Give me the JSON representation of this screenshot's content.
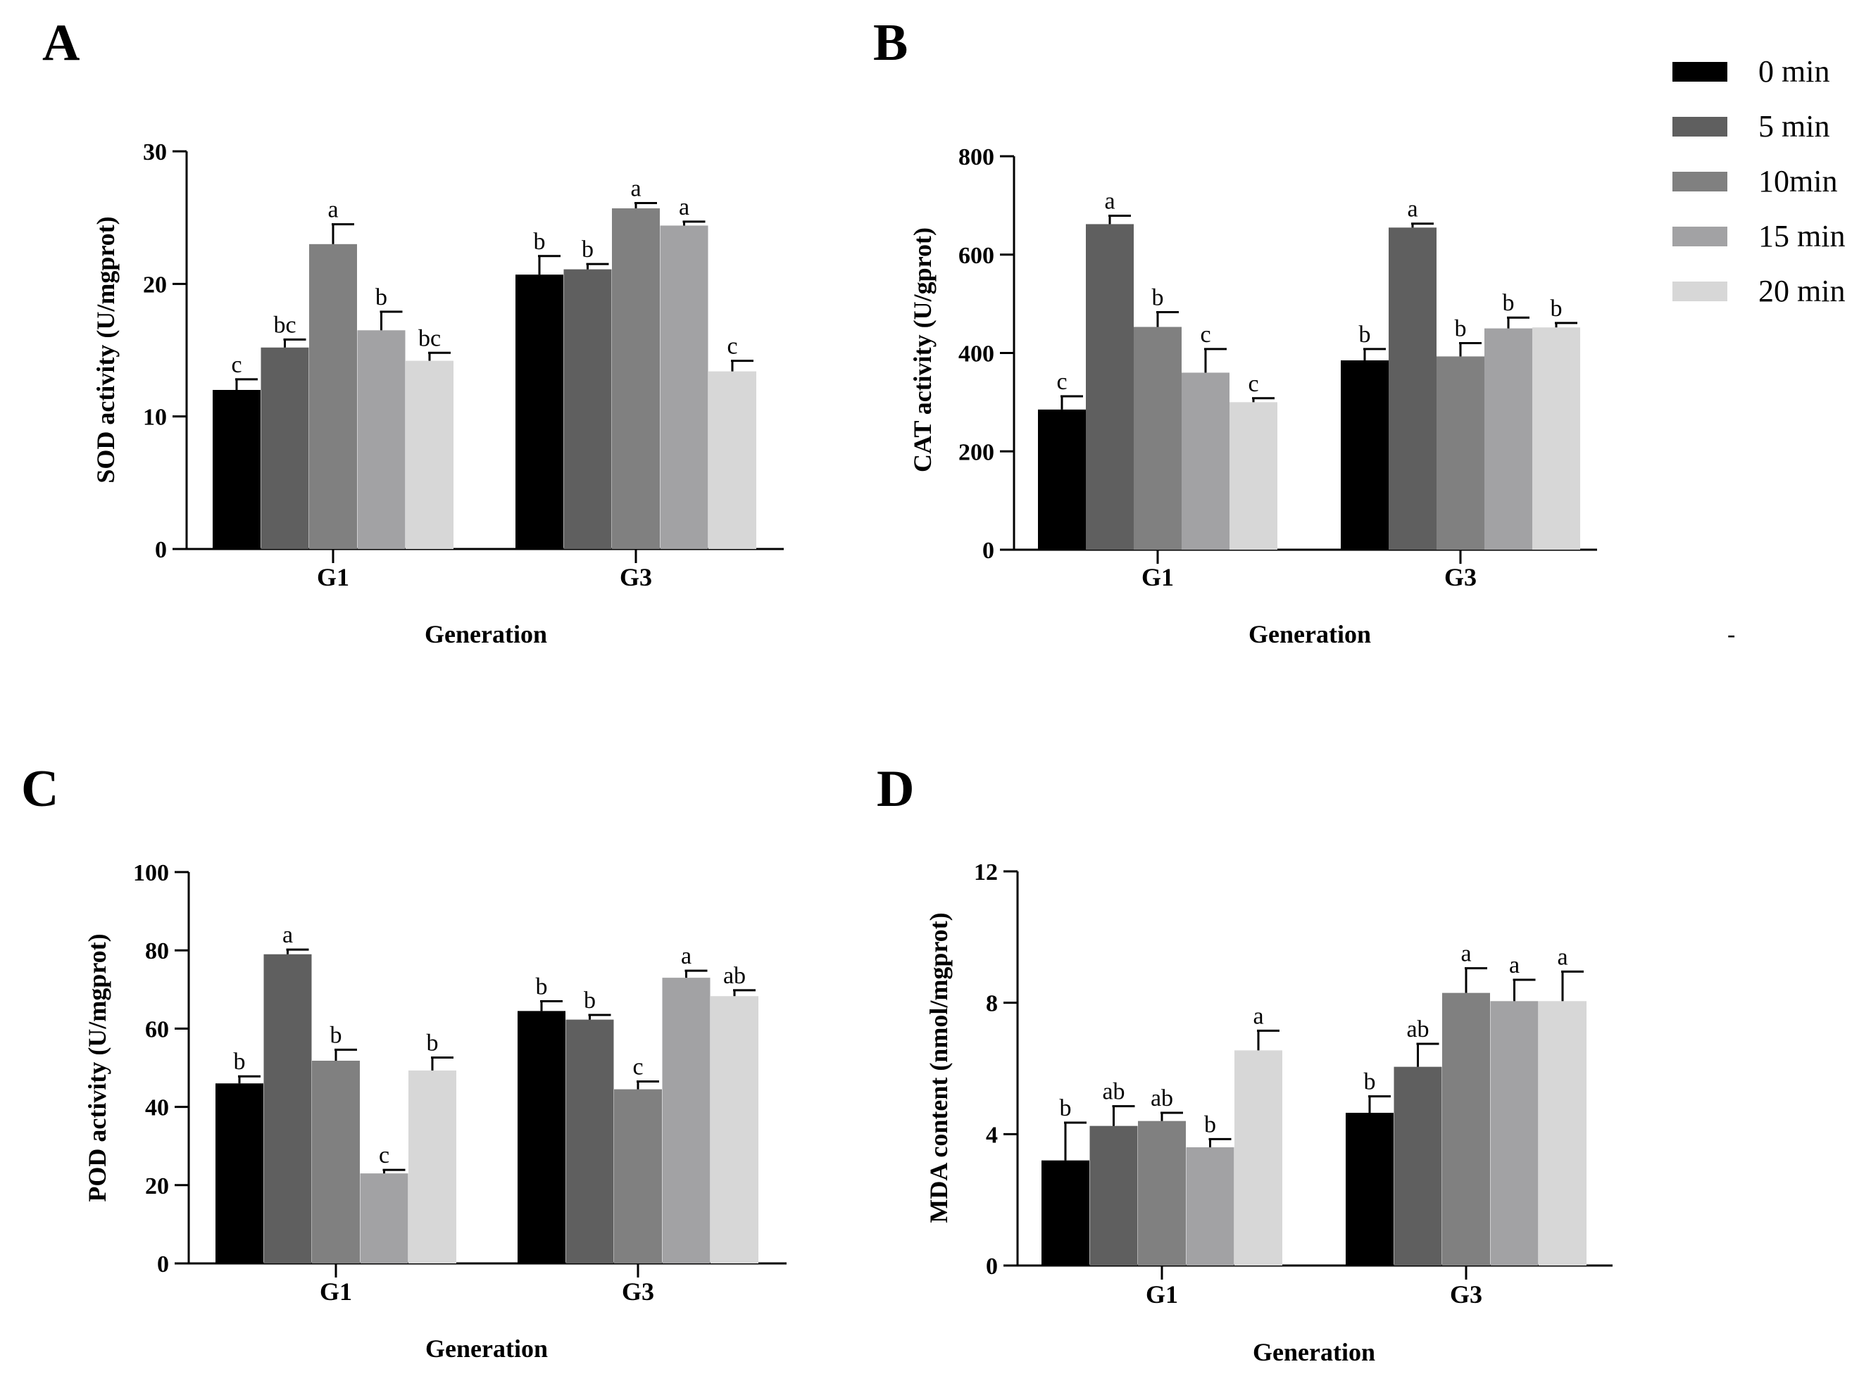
{
  "legend": [
    {
      "label": "0 min",
      "color": "#000000"
    },
    {
      "label": "5 min",
      "color": "#5f5f5f"
    },
    {
      "label": "10min",
      "color": "#808080"
    },
    {
      "label": "15 min",
      "color": "#a2a2a4"
    },
    {
      "label": "20 min",
      "color": "#d7d7d7"
    }
  ],
  "stray_mark": "-",
  "chart_data": [
    {
      "panel": "A",
      "type": "bar",
      "ylabel": "SOD activity  (U/mgprot)",
      "xlabel": "Generation",
      "categories": [
        "G1",
        "G3"
      ],
      "ylim": [
        0,
        30
      ],
      "yticks": [
        0,
        10,
        20,
        30
      ],
      "series": [
        {
          "name": "0 min",
          "values": [
            12.0,
            20.7
          ],
          "errors": [
            0.8,
            1.4
          ],
          "letters": [
            "c",
            "b"
          ]
        },
        {
          "name": "5 min",
          "values": [
            15.2,
            21.1
          ],
          "errors": [
            0.6,
            0.4
          ],
          "letters": [
            "bc",
            "b"
          ]
        },
        {
          "name": "10min",
          "values": [
            23.0,
            25.7
          ],
          "errors": [
            1.5,
            0.4
          ],
          "letters": [
            "a",
            "a"
          ]
        },
        {
          "name": "15 min",
          "values": [
            16.5,
            24.4
          ],
          "errors": [
            1.4,
            0.3
          ],
          "letters": [
            "b",
            "a"
          ]
        },
        {
          "name": "20 min",
          "values": [
            14.2,
            13.4
          ],
          "errors": [
            0.6,
            0.8
          ],
          "letters": [
            "bc",
            "c"
          ]
        }
      ]
    },
    {
      "panel": "B",
      "type": "bar",
      "ylabel": "CAT activity  (U/gprot)",
      "xlabel": "Generation",
      "categories": [
        "G1",
        "G3"
      ],
      "ylim": [
        0,
        800
      ],
      "yticks": [
        0,
        200,
        400,
        600,
        800
      ],
      "series": [
        {
          "name": "0 min",
          "values": [
            285,
            385
          ],
          "errors": [
            27,
            23
          ],
          "letters": [
            "c",
            "b"
          ]
        },
        {
          "name": "5 min",
          "values": [
            662,
            655
          ],
          "errors": [
            17,
            8
          ],
          "letters": [
            "a",
            "a"
          ]
        },
        {
          "name": "10min",
          "values": [
            453,
            393
          ],
          "errors": [
            30,
            27
          ],
          "letters": [
            "b",
            "b"
          ]
        },
        {
          "name": "15 min",
          "values": [
            360,
            450
          ],
          "errors": [
            48,
            22
          ],
          "letters": [
            "c",
            "b"
          ]
        },
        {
          "name": "20 min",
          "values": [
            300,
            452
          ],
          "errors": [
            8,
            9
          ],
          "letters": [
            "c",
            "b"
          ]
        }
      ]
    },
    {
      "panel": "C",
      "type": "bar",
      "ylabel": "POD activity (U/mgprot)",
      "xlabel": "Generation",
      "categories": [
        "G1",
        "G3"
      ],
      "ylim": [
        0,
        100
      ],
      "yticks": [
        0,
        20,
        40,
        60,
        80,
        100
      ],
      "series": [
        {
          "name": "0 min",
          "values": [
            46,
            64.5
          ],
          "errors": [
            1.8,
            2.5
          ],
          "letters": [
            "b",
            "b"
          ]
        },
        {
          "name": "5 min",
          "values": [
            79,
            62.3
          ],
          "errors": [
            1.2,
            1.2
          ],
          "letters": [
            "a",
            "b"
          ]
        },
        {
          "name": "10min",
          "values": [
            51.8,
            44.5
          ],
          "errors": [
            2.8,
            2.0
          ],
          "letters": [
            "b",
            "c"
          ]
        },
        {
          "name": "15 min",
          "values": [
            23,
            73
          ],
          "errors": [
            0.9,
            1.8
          ],
          "letters": [
            "c",
            "a"
          ]
        },
        {
          "name": "20 min",
          "values": [
            49.3,
            68.3
          ],
          "errors": [
            3.3,
            1.5
          ],
          "letters": [
            "b",
            "ab"
          ]
        }
      ]
    },
    {
      "panel": "D",
      "type": "bar",
      "ylabel": "MDA content (nmol/mgprot)",
      "xlabel": "Generation",
      "categories": [
        "G1",
        "G3"
      ],
      "ylim": [
        0,
        12
      ],
      "yticks": [
        0,
        4,
        8,
        12
      ],
      "series": [
        {
          "name": "0 min",
          "values": [
            3.2,
            4.65
          ],
          "errors": [
            1.15,
            0.5
          ],
          "letters": [
            "b",
            "b"
          ]
        },
        {
          "name": "5 min",
          "values": [
            4.25,
            6.05
          ],
          "errors": [
            0.6,
            0.7
          ],
          "letters": [
            "ab",
            "ab"
          ]
        },
        {
          "name": "10min",
          "values": [
            4.4,
            8.3
          ],
          "errors": [
            0.25,
            0.75
          ],
          "letters": [
            "ab",
            "a"
          ]
        },
        {
          "name": "15 min",
          "values": [
            3.6,
            8.05
          ],
          "errors": [
            0.25,
            0.65
          ],
          "letters": [
            "b",
            "a"
          ]
        },
        {
          "name": "20 min",
          "values": [
            6.55,
            8.05
          ],
          "errors": [
            0.6,
            0.9
          ],
          "letters": [
            "a",
            "a"
          ]
        }
      ]
    }
  ]
}
